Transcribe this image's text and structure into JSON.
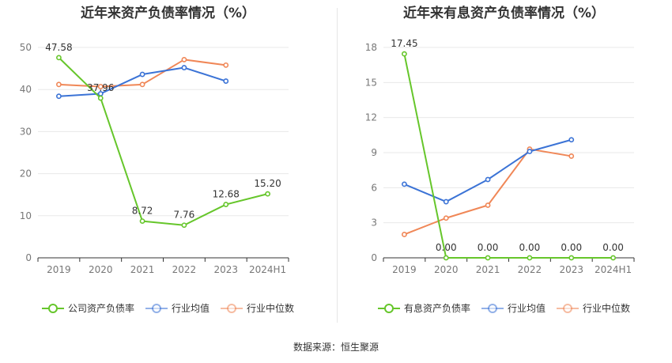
{
  "colors": {
    "company": "#66c62b",
    "industry_avg": "#3b73d6",
    "industry_median": "#f08757",
    "grid": "#e8e8e8",
    "axis": "#333333",
    "tick_text": "#777777"
  },
  "chart_data": [
    {
      "type": "line",
      "title": "近年来资产负债率情况（%）",
      "categories": [
        "2019",
        "2020",
        "2021",
        "2022",
        "2023",
        "2024H1"
      ],
      "ylim": [
        0,
        50
      ],
      "yticks": [
        0,
        10,
        20,
        30,
        40,
        50
      ],
      "series": [
        {
          "name": "公司资产负债率",
          "color_key": "company",
          "values": [
            47.58,
            37.96,
            8.72,
            7.76,
            12.68,
            15.2
          ],
          "labels": [
            "47.58",
            "37.96",
            "8.72",
            "7.76",
            "12.68",
            "15.20"
          ]
        },
        {
          "name": "行业均值",
          "color_key": "industry_avg",
          "values": [
            38.4,
            39.0,
            43.6,
            45.2,
            42.0,
            null
          ]
        },
        {
          "name": "行业中位数",
          "color_key": "industry_median",
          "values": [
            41.2,
            40.7,
            41.2,
            47.1,
            45.8,
            null
          ]
        }
      ]
    },
    {
      "type": "line",
      "title": "近年来有息资产负债率情况（%）",
      "categories": [
        "2019",
        "2020",
        "2021",
        "2022",
        "2023",
        "2024H1"
      ],
      "ylim": [
        0,
        18
      ],
      "yticks": [
        0,
        3,
        6,
        9,
        12,
        15,
        18
      ],
      "series": [
        {
          "name": "有息资产负债率",
          "color_key": "company",
          "values": [
            17.45,
            0.0,
            0.0,
            0.0,
            0.0,
            0.0
          ],
          "labels": [
            "17.45",
            "0.00",
            "0.00",
            "0.00",
            "0.00",
            "0.00"
          ]
        },
        {
          "name": "行业均值",
          "color_key": "industry_avg",
          "values": [
            6.3,
            4.8,
            6.7,
            9.1,
            10.1,
            null
          ]
        },
        {
          "name": "行业中位数",
          "color_key": "industry_median",
          "values": [
            2.0,
            3.4,
            4.5,
            9.3,
            8.7,
            null
          ]
        }
      ]
    }
  ],
  "footer": {
    "source": "数据来源：恒生聚源"
  }
}
